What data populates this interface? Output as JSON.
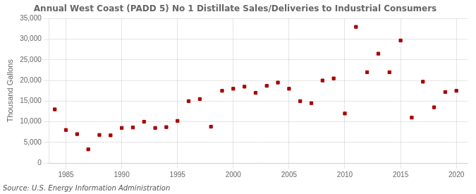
{
  "chart_data": {
    "type": "scatter",
    "title": "Annual West Coast (PADD 5) No 1 Distillate Sales/Deliveries to Industrial Consumers",
    "ylabel": "Thousand Gallons",
    "source": "Source: U.S. Energy Information Administration",
    "color": "#aa0000",
    "marker": "square",
    "x": [
      1984,
      1985,
      1986,
      1987,
      1988,
      1989,
      1990,
      1991,
      1992,
      1993,
      1994,
      1995,
      1996,
      1997,
      1998,
      1999,
      2000,
      2001,
      2002,
      2003,
      2004,
      2005,
      2006,
      2007,
      2008,
      2009,
      2010,
      2011,
      2012,
      2013,
      2014,
      2015,
      2016,
      2017,
      2018,
      2019,
      2020
    ],
    "values": [
      13000,
      8000,
      7000,
      3300,
      6800,
      6700,
      8500,
      8600,
      10000,
      8500,
      8700,
      10200,
      15000,
      15500,
      8800,
      17500,
      18000,
      18500,
      17000,
      18700,
      19500,
      18000,
      15000,
      14500,
      20000,
      20500,
      12000,
      33000,
      22000,
      26500,
      22000,
      29700,
      11000,
      19700,
      13500,
      17200,
      17500
    ],
    "xlim": [
      1983.5,
      2021
    ],
    "ylim": [
      0,
      35000
    ],
    "xticks": [
      1985,
      1990,
      1995,
      2000,
      2005,
      2010,
      2015,
      2020
    ],
    "yticks": [
      0,
      {
        "value": 5000,
        "label": "5,000"
      },
      {
        "value": 10000,
        "label": "10,000"
      },
      {
        "value": 15000,
        "label": "15,000"
      },
      {
        "value": 20000,
        "label": "20,000"
      },
      {
        "value": 25000,
        "label": "25,000"
      },
      {
        "value": 30000,
        "label": "30,000"
      },
      {
        "value": 35000,
        "label": "35,000"
      }
    ],
    "grid": true
  }
}
